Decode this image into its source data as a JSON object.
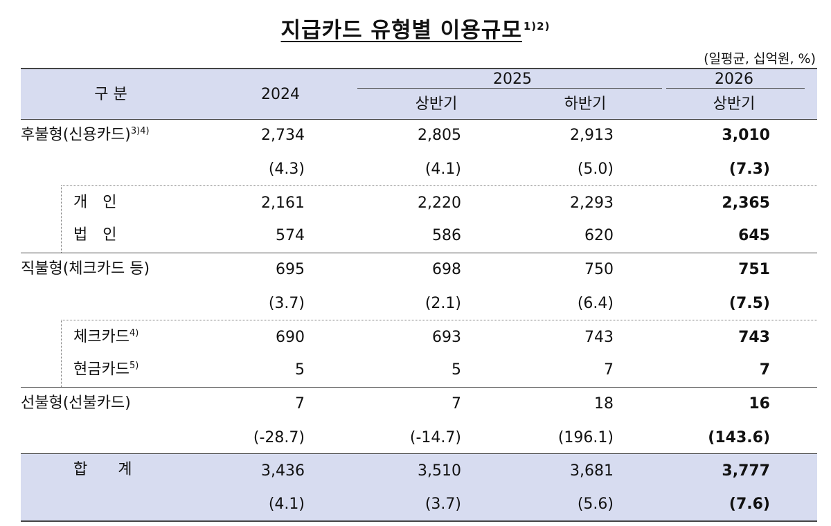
{
  "title": "지급카드 유형별 이용규모",
  "title_notes": "1)2)",
  "unit": "(일평균, 십억원, %)",
  "header": {
    "category": "구 분",
    "y2024": "2024",
    "y2025": "2025",
    "y2025_h1": "상반기",
    "y2025_h2": "하반기",
    "y2026": "2026",
    "y2026_h1": "상반기"
  },
  "rows": {
    "deferred": {
      "label": "후불형(신용카드)",
      "note": "3)4)",
      "v": [
        "2,734",
        "2,805",
        "2,913",
        "3,010"
      ],
      "g": [
        "(4.3)",
        "(4.1)",
        "(5.0)",
        "(7.3)"
      ]
    },
    "personal": {
      "label": "개　인",
      "v": [
        "2,161",
        "2,220",
        "2,293",
        "2,365"
      ]
    },
    "corporate": {
      "label": "법　인",
      "v": [
        "574",
        "586",
        "620",
        "645"
      ]
    },
    "direct": {
      "label": "직불형(체크카드 등)",
      "v": [
        "695",
        "698",
        "750",
        "751"
      ],
      "g": [
        "(3.7)",
        "(2.1)",
        "(6.4)",
        "(7.5)"
      ]
    },
    "check": {
      "label": "체크카드",
      "note": "4)",
      "v": [
        "690",
        "693",
        "743",
        "743"
      ]
    },
    "cash": {
      "label": "현금카드",
      "note": "5)",
      "v": [
        "5",
        "5",
        "7",
        "7"
      ]
    },
    "prepaid": {
      "label": "선불형(선불카드)",
      "v": [
        "7",
        "7",
        "18",
        "16"
      ],
      "g": [
        "(-28.7)",
        "(-14.7)",
        "(196.1)",
        "(143.6)"
      ]
    },
    "total": {
      "label": "합　　계",
      "v": [
        "3,436",
        "3,510",
        "3,681",
        "3,777"
      ],
      "g": [
        "(4.1)",
        "(3.7)",
        "(5.6)",
        "(7.6)"
      ]
    }
  }
}
